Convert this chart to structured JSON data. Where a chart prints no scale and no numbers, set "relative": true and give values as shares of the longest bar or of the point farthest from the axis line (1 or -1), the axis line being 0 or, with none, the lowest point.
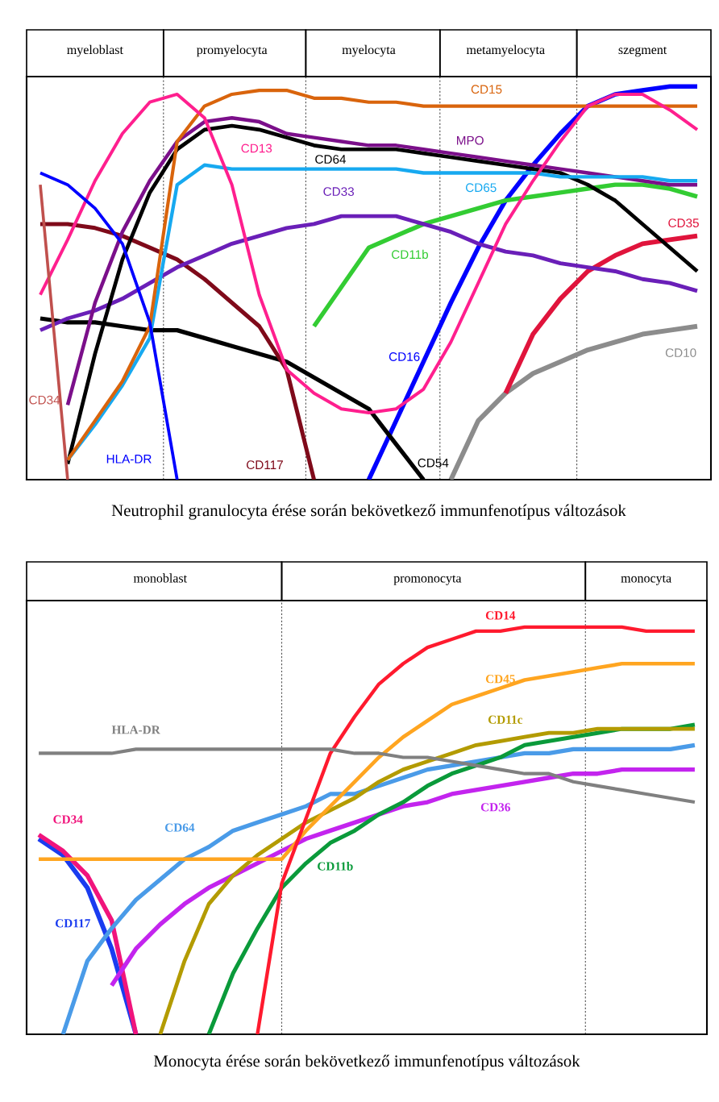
{
  "chart_data": [
    {
      "type": "line",
      "relative": true,
      "categories": [
        null,
        null,
        "myeloblast",
        null,
        null,
        null,
        null,
        "promyelocyta",
        null,
        null,
        null,
        null,
        "myelocyta",
        null,
        null,
        null,
        null,
        "metamyelocyta",
        null,
        null,
        null,
        null,
        "szegment",
        null,
        null
      ],
      "annotations": [
        "Neutrophil granulocyta érése során bekövetkező immunfenotípus változások"
      ],
      "series": [
        {
          "name": "CD34",
          "color": "#c0504d",
          "values": [
            0.75,
            0,
            null,
            null,
            null,
            null,
            null,
            null,
            null,
            null,
            null,
            null,
            null,
            null,
            null,
            null,
            null,
            null,
            null,
            null,
            null,
            null,
            null,
            null,
            null
          ]
        },
        {
          "name": "HLA-DR",
          "color": "#0000ff",
          "values": [
            0.78,
            0.75,
            0.69,
            0.6,
            0.4,
            0,
            null,
            null,
            null,
            null,
            null,
            null,
            null,
            null,
            null,
            null,
            null,
            null,
            null,
            null,
            null,
            null,
            null,
            null,
            null
          ]
        },
        {
          "name": "CD13",
          "color": "#ff1f8e",
          "values": [
            0.47,
            0.61,
            0.76,
            0.88,
            0.96,
            0.98,
            0.92,
            0.75,
            0.47,
            0.28,
            0.22,
            0.18,
            0.17,
            0.18,
            0.23,
            0.35,
            0.5,
            0.65,
            0.76,
            0.86,
            0.95,
            0.98,
            0.98,
            0.94,
            0.89
          ]
        },
        {
          "name": "CD15",
          "color": "#d9640c",
          "values": [
            null,
            0.05,
            0.15,
            0.25,
            0.39,
            0.86,
            0.95,
            0.98,
            0.99,
            0.99,
            0.97,
            0.97,
            0.96,
            0.96,
            0.95,
            0.95,
            0.95,
            0.95,
            0.95,
            0.95,
            0.95,
            0.95,
            0.95,
            0.95,
            0.95
          ]
        },
        {
          "name": "CD65",
          "color": "#17a9f0",
          "values": [
            null,
            0.05,
            0.14,
            0.24,
            0.36,
            0.75,
            0.8,
            0.79,
            0.79,
            0.79,
            0.79,
            0.79,
            0.79,
            0.79,
            0.78,
            0.78,
            0.78,
            0.78,
            0.78,
            0.77,
            0.77,
            0.77,
            0.77,
            0.76,
            0.76
          ]
        },
        {
          "name": "MPO",
          "color": "#7b0f8a",
          "values": [
            null,
            0.19,
            0.45,
            0.63,
            0.76,
            0.86,
            0.91,
            0.92,
            0.91,
            0.88,
            0.87,
            0.86,
            0.85,
            0.85,
            0.84,
            0.83,
            0.82,
            0.81,
            0.8,
            0.79,
            0.78,
            0.77,
            0.76,
            0.75,
            0.75
          ]
        },
        {
          "name": "CD64",
          "color": "#000000",
          "values": [
            null,
            0.04,
            0.32,
            0.56,
            0.73,
            0.84,
            0.89,
            0.9,
            0.89,
            0.87,
            0.85,
            0.84,
            0.84,
            0.84,
            0.83,
            0.82,
            0.81,
            0.8,
            0.79,
            0.78,
            0.75,
            0.71,
            0.65,
            0.59,
            0.53
          ]
        },
        {
          "name": "CD33",
          "color": "#6a1fb8",
          "values": [
            0.38,
            0.41,
            0.43,
            0.46,
            0.5,
            0.54,
            0.57,
            0.6,
            0.62,
            0.64,
            0.65,
            0.67,
            0.67,
            0.67,
            0.65,
            0.63,
            0.6,
            0.58,
            0.57,
            0.55,
            0.54,
            0.53,
            0.51,
            0.5,
            0.48
          ]
        },
        {
          "name": "CD117",
          "color": "#7f0a1a",
          "values": [
            0.65,
            0.65,
            0.64,
            0.62,
            0.59,
            0.56,
            0.51,
            0.45,
            0.39,
            0.28,
            0,
            null,
            null,
            null,
            null,
            null,
            null,
            null,
            null,
            null,
            null,
            null,
            null,
            null,
            null
          ]
        },
        {
          "name": "CD54",
          "color": "#000000",
          "values": [
            0.41,
            0.4,
            0.4,
            0.39,
            0.38,
            0.38,
            0.36,
            0.34,
            0.32,
            0.3,
            0.26,
            0.22,
            0.18,
            0.09,
            0,
            null,
            null,
            null,
            null,
            null,
            null,
            null,
            null,
            null,
            null
          ]
        },
        {
          "name": "CD11b",
          "color": "#33cc33",
          "values": [
            null,
            null,
            null,
            null,
            null,
            null,
            null,
            null,
            null,
            null,
            0.39,
            0.49,
            0.59,
            0.62,
            0.65,
            0.67,
            0.69,
            0.71,
            0.72,
            0.73,
            0.74,
            0.75,
            0.75,
            0.74,
            0.72
          ]
        },
        {
          "name": "CD16",
          "color": "#0000ff",
          "values": [
            null,
            null,
            null,
            null,
            null,
            null,
            null,
            null,
            null,
            null,
            null,
            null,
            0,
            0.15,
            0.3,
            0.45,
            0.59,
            0.71,
            0.8,
            0.88,
            0.95,
            0.98,
            0.99,
            1.0,
            1.0
          ]
        },
        {
          "name": "CD35",
          "color": "#e0143c",
          "values": [
            null,
            null,
            null,
            null,
            null,
            null,
            null,
            null,
            null,
            null,
            null,
            null,
            null,
            null,
            null,
            null,
            null,
            0.22,
            0.37,
            0.46,
            0.53,
            0.57,
            0.6,
            0.61,
            0.62
          ]
        },
        {
          "name": "CD10",
          "color": "#8c8c8c",
          "values": [
            null,
            null,
            null,
            null,
            null,
            null,
            null,
            null,
            null,
            null,
            null,
            null,
            null,
            null,
            null,
            0,
            0.15,
            0.22,
            0.27,
            0.3,
            0.33,
            0.35,
            0.37,
            0.38,
            0.39
          ]
        }
      ]
    },
    {
      "type": "line",
      "relative": true,
      "categories": [
        null,
        null,
        null,
        null,
        null,
        "monoblast",
        null,
        null,
        null,
        null,
        null,
        null,
        null,
        null,
        null,
        null,
        "promonocyta",
        null,
        null,
        null,
        null,
        null,
        null,
        null,
        null,
        "monocyta",
        null,
        null
      ],
      "annotations": [
        "Monocyta érése során bekövetkező immunfenotípus változások"
      ],
      "series": [
        {
          "name": "HLA-DR",
          "color": "#808080",
          "values": [
            0.69,
            0.69,
            0.69,
            0.69,
            0.7,
            0.7,
            0.7,
            0.7,
            0.7,
            0.7,
            0.7,
            0.7,
            0.7,
            0.69,
            0.69,
            0.68,
            0.68,
            0.67,
            0.66,
            0.65,
            0.64,
            0.64,
            0.62,
            0.61,
            0.6,
            0.59,
            0.58,
            0.57
          ]
        },
        {
          "name": "CD14",
          "color": "#ff1a2e",
          "values": [
            null,
            null,
            null,
            null,
            null,
            null,
            null,
            null,
            null,
            0,
            0.37,
            0.53,
            0.69,
            0.78,
            0.86,
            0.91,
            0.95,
            0.97,
            0.99,
            0.99,
            1.0,
            1.0,
            1.0,
            1.0,
            1.0,
            0.99,
            0.99,
            0.99
          ]
        },
        {
          "name": "CD45",
          "color": "#ffa520",
          "values": [
            0.43,
            0.43,
            0.43,
            0.43,
            0.43,
            0.43,
            0.43,
            0.43,
            0.43,
            0.43,
            0.43,
            0.5,
            0.56,
            0.62,
            0.68,
            0.73,
            0.77,
            0.81,
            0.83,
            0.85,
            0.87,
            0.88,
            0.89,
            0.9,
            0.91,
            0.91,
            0.91,
            0.91
          ]
        },
        {
          "name": "CD11c",
          "color": "#b39b00",
          "values": [
            null,
            null,
            null,
            null,
            null,
            0,
            0.18,
            0.32,
            0.39,
            0.44,
            0.48,
            0.52,
            0.55,
            0.58,
            0.62,
            0.65,
            0.67,
            0.69,
            0.71,
            0.72,
            0.73,
            0.74,
            0.74,
            0.75,
            0.75,
            0.75,
            0.75,
            0.75
          ]
        },
        {
          "name": "CD11b",
          "color": "#0a9a3a",
          "values": [
            null,
            null,
            null,
            null,
            null,
            null,
            null,
            0,
            0.15,
            0.26,
            0.36,
            0.42,
            0.47,
            0.5,
            0.54,
            0.57,
            0.61,
            0.64,
            0.66,
            0.68,
            0.71,
            0.72,
            0.73,
            0.74,
            0.75,
            0.75,
            0.75,
            0.76
          ]
        },
        {
          "name": "CD64",
          "color": "#4a9be8",
          "values": [
            null,
            0,
            0.18,
            0.26,
            0.33,
            0.38,
            0.43,
            0.46,
            0.5,
            0.52,
            0.54,
            0.56,
            0.59,
            0.59,
            0.61,
            0.63,
            0.65,
            0.66,
            0.67,
            0.68,
            0.69,
            0.69,
            0.7,
            0.7,
            0.7,
            0.7,
            0.7,
            0.71
          ]
        },
        {
          "name": "CD36",
          "color": "#c324ee",
          "values": [
            null,
            null,
            null,
            0.12,
            0.21,
            0.27,
            0.32,
            0.36,
            0.39,
            0.42,
            0.45,
            0.48,
            0.5,
            0.52,
            0.54,
            0.56,
            0.57,
            0.59,
            0.6,
            0.61,
            0.62,
            0.63,
            0.64,
            0.64,
            0.65,
            0.65,
            0.65,
            0.65
          ]
        },
        {
          "name": "CD34",
          "color": "#f0147c",
          "values": [
            0.49,
            0.45,
            0.39,
            0.28,
            0,
            null,
            null,
            null,
            null,
            null,
            null,
            null,
            null,
            null,
            null,
            null,
            null,
            null,
            null,
            null,
            null,
            null,
            null,
            null,
            null,
            null,
            null,
            null
          ]
        },
        {
          "name": "CD117",
          "color": "#1a3cf0",
          "values": [
            0.48,
            0.44,
            0.36,
            0.21,
            0,
            null,
            null,
            null,
            null,
            null,
            null,
            null,
            null,
            null,
            null,
            null,
            null,
            null,
            null,
            null,
            null,
            null,
            null,
            null,
            null,
            null,
            null,
            null
          ]
        }
      ]
    }
  ]
}
